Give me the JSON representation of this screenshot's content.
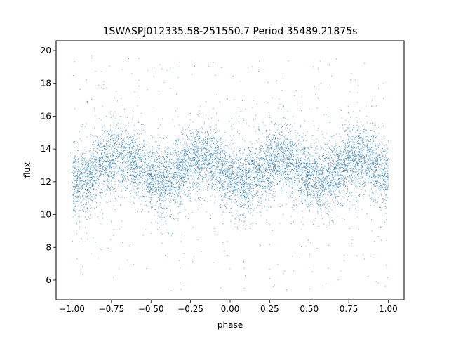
{
  "chart_data": {
    "type": "scatter",
    "title": "1SWASPJ012335.58-251550.7 Period 35489.21875s",
    "xlabel": "phase",
    "ylabel": "flux",
    "xlim": [
      -1.1,
      1.1
    ],
    "ylim": [
      4.8,
      20.6
    ],
    "x_ticks": [
      -1.0,
      -0.75,
      -0.5,
      -0.25,
      0.0,
      0.25,
      0.5,
      0.75,
      1.0
    ],
    "x_tick_labels": [
      "−1.00",
      "−0.75",
      "−0.50",
      "−0.25",
      "0.00",
      "0.25",
      "0.50",
      "0.75",
      "1.00"
    ],
    "y_ticks": [
      6,
      8,
      10,
      12,
      14,
      16,
      18,
      20
    ],
    "y_tick_labels": [
      "6",
      "8",
      "10",
      "12",
      "14",
      "16",
      "18",
      "20"
    ],
    "grid": false,
    "legend": false,
    "series": [
      {
        "color": "#1f77b4",
        "phase_range": [
          -1.0,
          1.0
        ],
        "points_shown": "many thousands (dense band)",
        "baseline_flux": 12.1,
        "peak_flux_phases": [
          -0.67,
          -0.17,
          0.33,
          0.83
        ],
        "peak_flux": 13.6,
        "trough_flux_phases": [
          -0.92,
          -0.42,
          0.08,
          0.58
        ],
        "trough_flux": 12.0,
        "band_spread": 1.0,
        "outlier_range": [
          5.4,
          19.8
        ],
        "points": [
          [
            -0.98,
            11.9
          ],
          [
            -0.9,
            12.2
          ],
          [
            -0.83,
            12.9
          ],
          [
            -0.75,
            13.4
          ],
          [
            -0.67,
            13.6
          ],
          [
            -0.58,
            13.0
          ],
          [
            -0.5,
            12.4
          ],
          [
            -0.42,
            12.0
          ],
          [
            -0.33,
            12.5
          ],
          [
            -0.25,
            13.2
          ],
          [
            -0.17,
            13.6
          ],
          [
            -0.08,
            13.0
          ],
          [
            0.0,
            12.3
          ],
          [
            0.08,
            12.0
          ],
          [
            0.17,
            12.5
          ],
          [
            0.25,
            13.2
          ],
          [
            0.33,
            13.6
          ],
          [
            0.42,
            13.0
          ],
          [
            0.5,
            12.3
          ],
          [
            0.58,
            12.0
          ],
          [
            0.67,
            12.6
          ],
          [
            0.75,
            13.3
          ],
          [
            0.83,
            13.6
          ],
          [
            0.92,
            13.0
          ],
          [
            1.0,
            12.3
          ]
        ]
      }
    ]
  }
}
